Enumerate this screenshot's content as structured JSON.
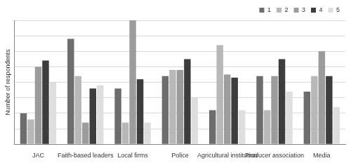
{
  "chart_data": {
    "type": "bar",
    "y_label": "Number of respondents",
    "categories": [
      "JAC",
      "Faith-based leaders",
      "Local firms",
      "Police",
      "Agricultural institution",
      "Producer association",
      "Media"
    ],
    "series": [
      {
        "name": "1",
        "color": "#6d6d6d",
        "values": [
          2.0,
          6.8,
          3.6,
          4.4,
          2.2,
          4.4,
          3.4
        ]
      },
      {
        "name": "2",
        "color": "#b8b8b8",
        "values": [
          1.6,
          4.4,
          1.4,
          4.8,
          6.4,
          2.2,
          4.4
        ]
      },
      {
        "name": "3",
        "color": "#9c9c9c",
        "values": [
          5.0,
          1.4,
          8.0,
          4.8,
          4.5,
          4.4,
          6.0
        ]
      },
      {
        "name": "4",
        "color": "#3d3d3d",
        "values": [
          5.4,
          3.6,
          4.2,
          5.5,
          4.3,
          5.5,
          4.4
        ]
      },
      {
        "name": "5",
        "color": "#dedede",
        "values": [
          4.0,
          3.8,
          1.4,
          3.0,
          2.2,
          3.4,
          2.4
        ]
      }
    ],
    "ylim": [
      0,
      8
    ],
    "yticks": [
      0,
      1,
      2,
      3,
      4,
      5,
      6,
      7,
      8
    ],
    "grid": true,
    "legend": "top-right",
    "tick_labels": "x"
  }
}
